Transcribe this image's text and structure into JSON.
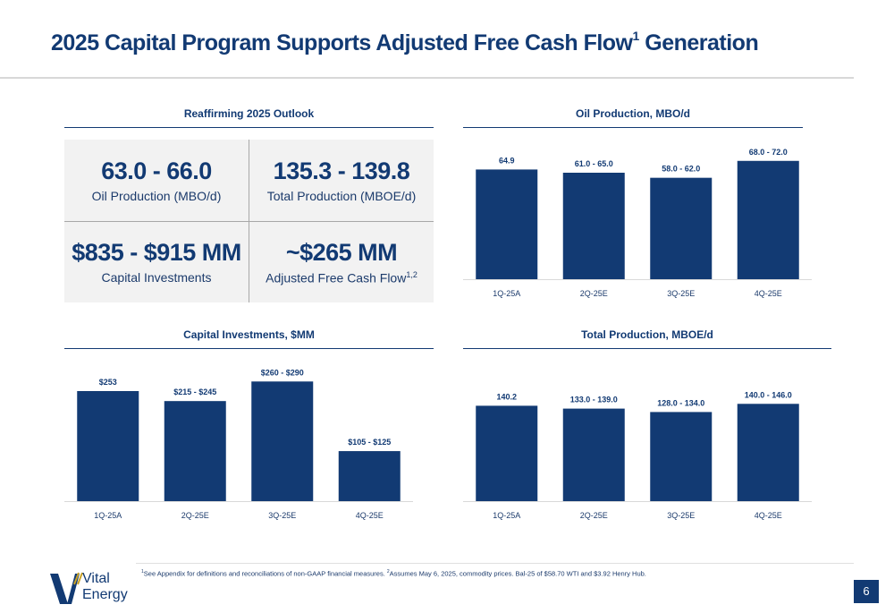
{
  "page": {
    "title_main": "2025 Capital Program Supports Adjusted Free Cash Flow",
    "title_sup": "1",
    "title_end": " Generation",
    "page_number": "6"
  },
  "outlook": {
    "title": "Reaffirming 2025 Outlook",
    "cells": [
      {
        "value": "63.0 - 66.0",
        "label": "Oil Production (MBO/d)",
        "label_sup": ""
      },
      {
        "value": "135.3 - 139.8",
        "label": "Total Production (MBOE/d)",
        "label_sup": ""
      },
      {
        "value": "$835 - $915 MM",
        "label": "Capital Investments",
        "label_sup": ""
      },
      {
        "value": "~$265 MM",
        "label": "Adjusted Free Cash Flow",
        "label_sup": "1,2"
      }
    ]
  },
  "chart_data": [
    {
      "id": "oil",
      "type": "bar",
      "title": "Oil Production, MBO/d",
      "categories": [
        "1Q-25A",
        "2Q-25E",
        "3Q-25E",
        "4Q-25E"
      ],
      "values": [
        64.9,
        63.0,
        60.0,
        70.0
      ],
      "data_labels": [
        "64.9",
        "61.0 - 65.0",
        "58.0 - 62.0",
        "68.0 - 72.0"
      ],
      "color": "#123a73",
      "ylim": [
        0,
        72
      ]
    },
    {
      "id": "capex",
      "type": "bar",
      "title": "Capital Investments, $MM",
      "categories": [
        "1Q-25A",
        "2Q-25E",
        "3Q-25E",
        "4Q-25E"
      ],
      "values": [
        253,
        230,
        275,
        115
      ],
      "data_labels": [
        "$253",
        "$215 - $245",
        "$260 - $290",
        "$105 - $125"
      ],
      "color": "#123a73",
      "ylim": [
        0,
        290
      ]
    },
    {
      "id": "total",
      "type": "bar",
      "title": "Total Production, MBOE/d",
      "categories": [
        "1Q-25A",
        "2Q-25E",
        "3Q-25E",
        "4Q-25E"
      ],
      "values": [
        140.2,
        136.0,
        131.0,
        143.0
      ],
      "data_labels": [
        "140.2",
        "133.0 - 139.0",
        "128.0 - 134.0",
        "140.0 - 146.0"
      ],
      "color": "#123a73",
      "ylim": [
        0,
        146
      ]
    }
  ],
  "footnote": {
    "sup1": "1",
    "text1": "See Appendix for definitions and reconciliations of non-GAAP financial measures. ",
    "sup2": "2",
    "text2": "Assumes May 6, 2025, commodity prices. Bal-25 of $58.70 WTI and $3.92 Henry Hub."
  },
  "logo": {
    "line1": "Vital",
    "line2": "Energy"
  }
}
